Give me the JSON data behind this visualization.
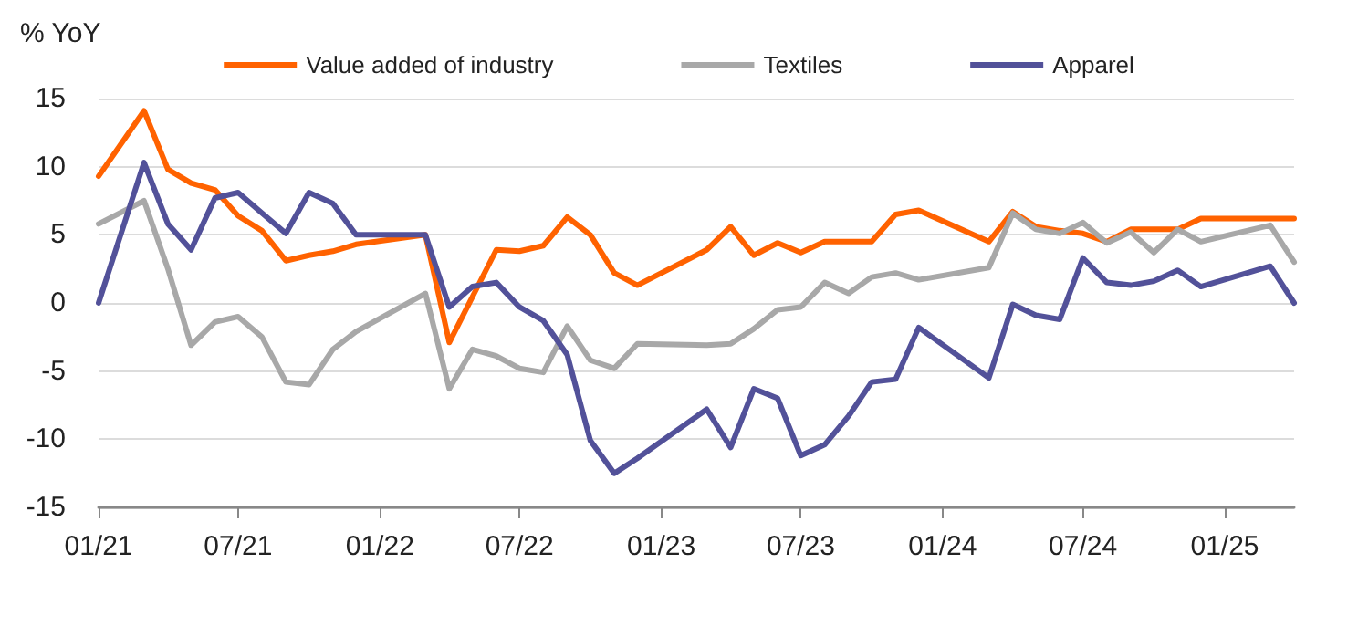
{
  "chart_data": {
    "type": "line",
    "ylabel": "% YoY",
    "x": [
      "2021-01",
      "2021-02",
      "2021-03",
      "2021-04",
      "2021-05",
      "2021-06",
      "2021-07",
      "2021-08",
      "2021-09",
      "2021-10",
      "2021-11",
      "2021-12",
      "2022-01",
      "2022-02",
      "2022-03",
      "2022-04",
      "2022-05",
      "2022-06",
      "2022-07",
      "2022-08",
      "2022-09",
      "2022-10",
      "2022-11",
      "2022-12",
      "2023-01",
      "2023-02",
      "2023-03",
      "2023-04",
      "2023-05",
      "2023-06",
      "2023-07",
      "2023-08",
      "2023-09",
      "2023-10",
      "2023-11",
      "2023-12",
      "2024-01",
      "2024-02",
      "2024-03",
      "2024-04",
      "2024-05",
      "2024-06",
      "2024-07",
      "2024-08",
      "2024-09",
      "2024-10",
      "2024-11",
      "2024-12",
      "2025-01",
      "2025-02",
      "2025-03",
      "2025-04"
    ],
    "series": [
      {
        "name": "Value added of industry",
        "color": "#ff6200",
        "values": [
          9.3,
          null,
          14.1,
          9.8,
          8.8,
          8.3,
          6.4,
          5.3,
          3.1,
          3.5,
          3.8,
          4.3,
          null,
          null,
          5.0,
          -2.9,
          null,
          3.9,
          3.8,
          4.2,
          6.3,
          5.0,
          2.2,
          1.3,
          null,
          null,
          3.9,
          5.6,
          3.5,
          4.4,
          3.7,
          4.5,
          4.5,
          4.5,
          6.5,
          6.8,
          null,
          null,
          4.5,
          6.7,
          5.6,
          5.3,
          5.1,
          4.5,
          5.4,
          5.4,
          5.4,
          6.2,
          null,
          null,
          6.2,
          6.2
        ]
      },
      {
        "name": "Textiles",
        "color": "#a8a8a8",
        "values": [
          5.8,
          null,
          7.5,
          2.5,
          -3.1,
          -1.4,
          -1.0,
          -2.5,
          -5.8,
          -6.0,
          -3.4,
          -2.1,
          null,
          null,
          0.7,
          -6.3,
          -3.4,
          -3.9,
          -4.8,
          -5.1,
          -1.7,
          -4.2,
          -4.8,
          -3.0,
          null,
          null,
          -3.1,
          -3.0,
          -1.9,
          -0.5,
          -0.3,
          1.5,
          0.7,
          1.9,
          2.2,
          1.7,
          null,
          null,
          2.6,
          6.6,
          5.4,
          5.1,
          5.9,
          4.4,
          5.2,
          3.7,
          5.4,
          4.5,
          null,
          null,
          5.7,
          3.0
        ]
      },
      {
        "name": "Apparel",
        "color": "#525199",
        "values": [
          0,
          null,
          10.3,
          5.8,
          3.9,
          7.7,
          8.1,
          6.6,
          5.1,
          8.1,
          7.3,
          5.0,
          null,
          null,
          5.0,
          -0.3,
          1.2,
          1.5,
          -0.3,
          -1.3,
          -3.8,
          -10.1,
          -12.5,
          -11.4,
          null,
          null,
          -7.8,
          -10.6,
          -6.3,
          -7.0,
          -11.2,
          -10.4,
          -8.3,
          -5.8,
          -5.6,
          -1.8,
          null,
          null,
          -5.5,
          -0.1,
          -0.9,
          -1.2,
          3.3,
          1.5,
          1.3,
          1.6,
          2.4,
          1.2,
          null,
          null,
          2.7,
          0
        ]
      }
    ],
    "xlim": [
      "2021-01",
      "2025-04"
    ],
    "xticks": [
      {
        "value": "2021-01",
        "label": "01/21"
      },
      {
        "value": "2021-07",
        "label": "07/21"
      },
      {
        "value": "2022-01",
        "label": "01/22"
      },
      {
        "value": "2022-07",
        "label": "07/22"
      },
      {
        "value": "2023-01",
        "label": "01/23"
      },
      {
        "value": "2023-07",
        "label": "07/23"
      },
      {
        "value": "2024-01",
        "label": "01/24"
      },
      {
        "value": "2024-07",
        "label": "07/24"
      },
      {
        "value": "2025-01",
        "label": "01/25"
      }
    ],
    "ylim": [
      -15,
      15
    ],
    "yticks": [
      -15,
      -10,
      -5,
      0,
      5,
      10,
      15
    ],
    "grid": "y",
    "legend": "top",
    "marker": "none",
    "line_style": "solid"
  }
}
